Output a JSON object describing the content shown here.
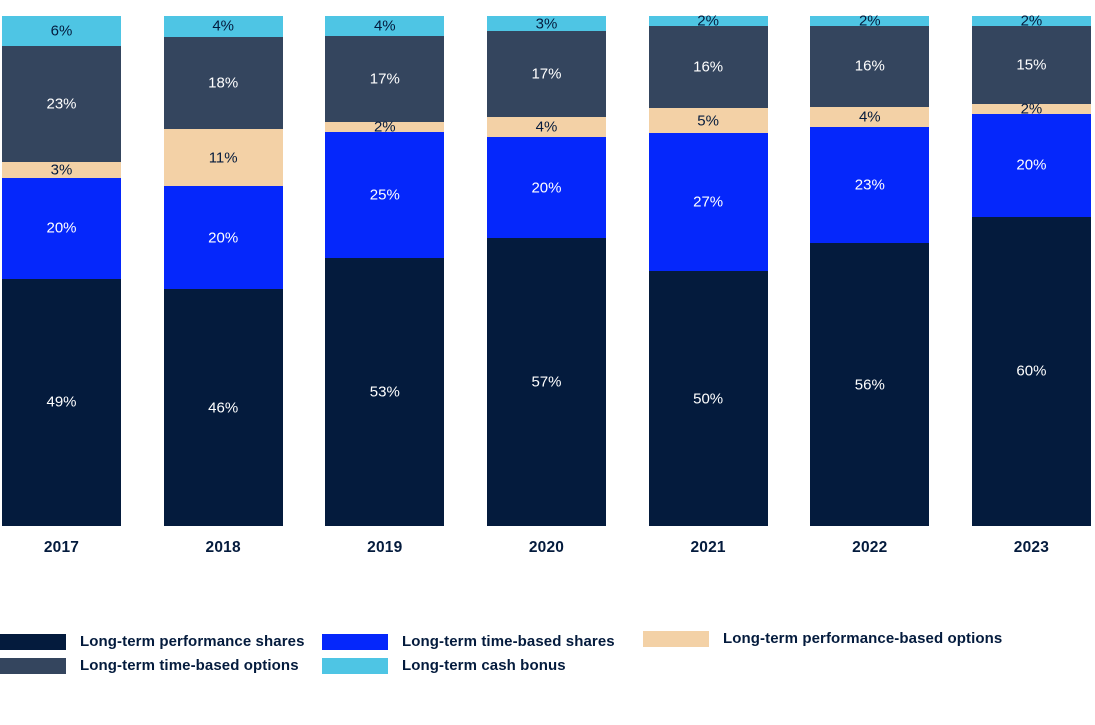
{
  "chart_data": {
    "type": "bar",
    "variant": "100-percent-stacked-vertical",
    "title": "",
    "xlabel": "",
    "ylabel": "",
    "grid": false,
    "value_suffix": "%",
    "categories": [
      "2017",
      "2018",
      "2019",
      "2020",
      "2021",
      "2022",
      "2023"
    ],
    "series": [
      {
        "name": "Long-term performance shares",
        "color": "#041b3d",
        "label_color": "#ffffff",
        "values": [
          49,
          46,
          53,
          57,
          50,
          56,
          60
        ]
      },
      {
        "name": "Long-term time-based shares",
        "color": "#0527fb",
        "label_color": "#ffffff",
        "values": [
          20,
          20,
          25,
          20,
          27,
          23,
          20
        ]
      },
      {
        "name": "Long-term performance-based options",
        "color": "#f3d1a6",
        "label_color": "#041b3d",
        "values": [
          3,
          11,
          2,
          4,
          5,
          4,
          2
        ]
      },
      {
        "name": "Long-term time-based options",
        "color": "#34455e",
        "label_color": "#ffffff",
        "values": [
          23,
          18,
          17,
          17,
          16,
          16,
          15
        ]
      },
      {
        "name": "Long-term cash bonus",
        "color": "#4ec5e4",
        "label_color": "#041b3d",
        "values": [
          6,
          4,
          4,
          3,
          2,
          2,
          2
        ]
      }
    ],
    "legend_columns": [
      [
        0,
        3
      ],
      [
        1,
        4
      ],
      [
        2
      ]
    ],
    "legend_position": "bottom-left"
  }
}
